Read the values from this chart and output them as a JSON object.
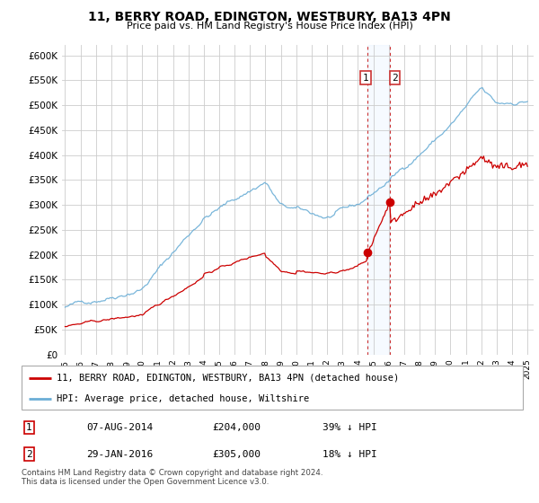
{
  "title": "11, BERRY ROAD, EDINGTON, WESTBURY, BA13 4PN",
  "subtitle": "Price paid vs. HM Land Registry's House Price Index (HPI)",
  "legend_line1": "11, BERRY ROAD, EDINGTON, WESTBURY, BA13 4PN (detached house)",
  "legend_line2": "HPI: Average price, detached house, Wiltshire",
  "transaction1_date": "07-AUG-2014",
  "transaction1_price": "£204,000",
  "transaction1_hpi": "39% ↓ HPI",
  "transaction2_date": "29-JAN-2016",
  "transaction2_price": "£305,000",
  "transaction2_hpi": "18% ↓ HPI",
  "footnote": "Contains HM Land Registry data © Crown copyright and database right 2024.\nThis data is licensed under the Open Government Licence v3.0.",
  "hpi_color": "#6baed6",
  "price_color": "#cc0000",
  "marker_color": "#cc0000",
  "vline_color": "#cc3333",
  "highlight_color": "#ddeeff",
  "ylim": [
    0,
    620000
  ],
  "yticks": [
    0,
    50000,
    100000,
    150000,
    200000,
    250000,
    300000,
    350000,
    400000,
    450000,
    500000,
    550000,
    600000
  ],
  "transaction1_year": 2014.6,
  "transaction2_year": 2016.08,
  "bg_color": "#ffffff",
  "grid_color": "#cccccc"
}
